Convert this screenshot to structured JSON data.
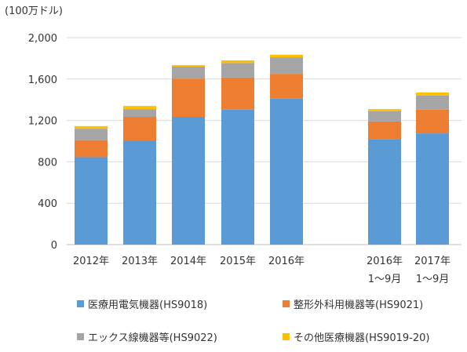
{
  "chart_data": {
    "type": "bar",
    "stacked": true,
    "unit_label": "(100万ドル)",
    "title": "",
    "xlabel": "",
    "ylabel": "",
    "ylim": [
      0,
      2000
    ],
    "yticks": [
      "0",
      "400",
      "800",
      "1,200",
      "1,600",
      "2,000"
    ],
    "ytick_values": [
      0,
      400,
      800,
      1200,
      1600,
      2000
    ],
    "grid": true,
    "legend_position": "bottom",
    "categories": [
      [
        "2012年"
      ],
      [
        "2013年"
      ],
      [
        "2014年"
      ],
      [
        "2015年"
      ],
      [
        "2016年"
      ],
      [
        "2016年",
        "1～9月"
      ],
      [
        "2017年",
        "1～9月"
      ]
    ],
    "series": [
      {
        "name": "医療用電気機器(HS9018)",
        "color": "#5b9bd5",
        "values": [
          845,
          1000,
          1235,
          1305,
          1410,
          1020,
          1075
        ]
      },
      {
        "name": "整形外科用機器等(HS9021)",
        "color": "#ed7d31",
        "values": [
          165,
          235,
          370,
          310,
          240,
          170,
          230
        ]
      },
      {
        "name": "エックス線機器等(HS9022)",
        "color": "#a5a5a5",
        "values": [
          110,
          75,
          115,
          140,
          160,
          100,
          135
        ]
      },
      {
        "name": "その他医療機器(HS9019-20)",
        "color": "#ffc000",
        "values": [
          25,
          30,
          15,
          25,
          25,
          20,
          30
        ]
      }
    ]
  }
}
